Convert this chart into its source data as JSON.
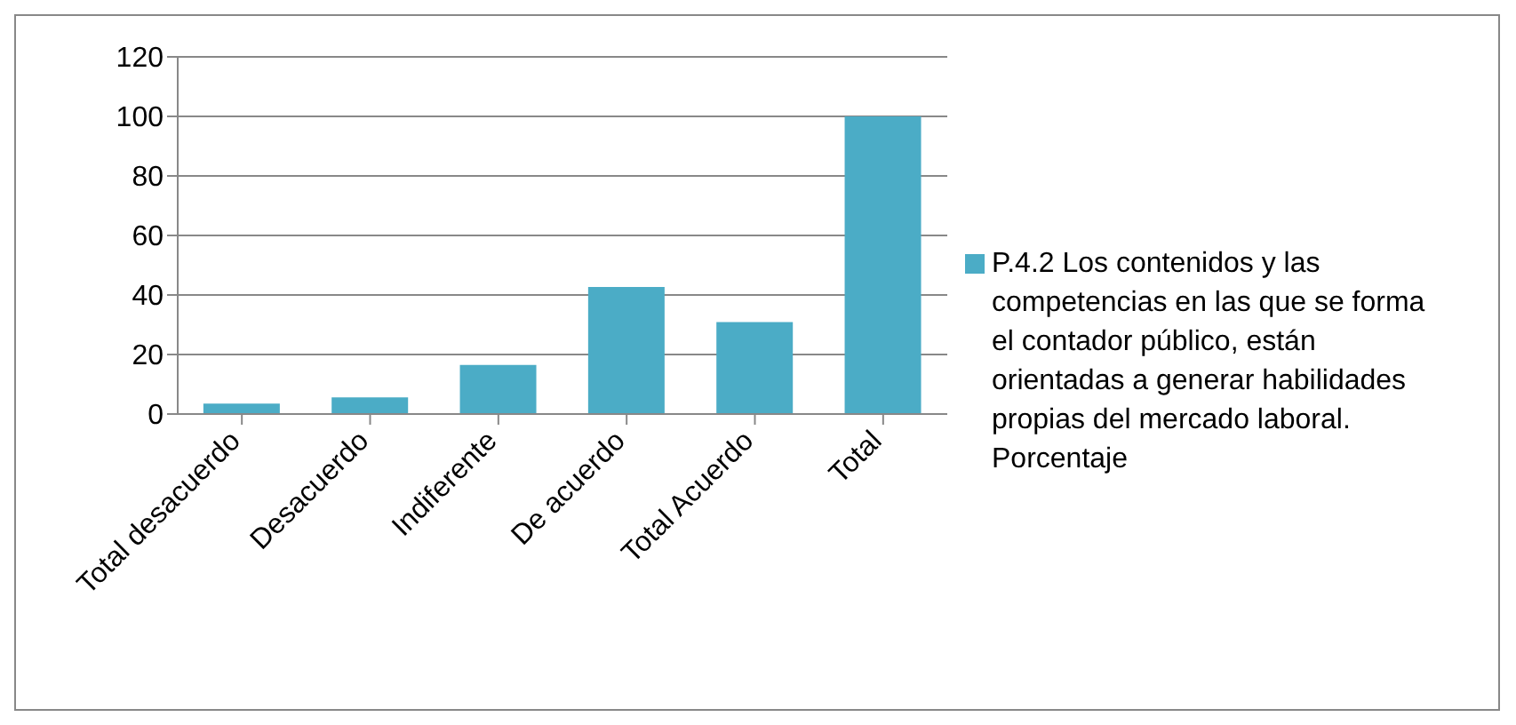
{
  "chart_data": {
    "type": "bar",
    "categories": [
      "Total desacuerdo",
      "Desacuerdo",
      "Indiferente",
      "De acuerdo",
      "Total Acuerdo",
      "Total"
    ],
    "series": [
      {
        "name": "P.4.2 Los contenidos y las competencias en las que se forma el contador público, están orientadas a generar habilidades propias del mercado laboral. Porcentaje",
        "color": "#4bacc6",
        "values": [
          3.5,
          5.6,
          16.5,
          42.7,
          30.9,
          100
        ]
      }
    ],
    "ylim": [
      0,
      120
    ],
    "yticks": [
      0,
      20,
      40,
      60,
      80,
      100,
      120
    ],
    "grid": "y",
    "legend": "right"
  }
}
